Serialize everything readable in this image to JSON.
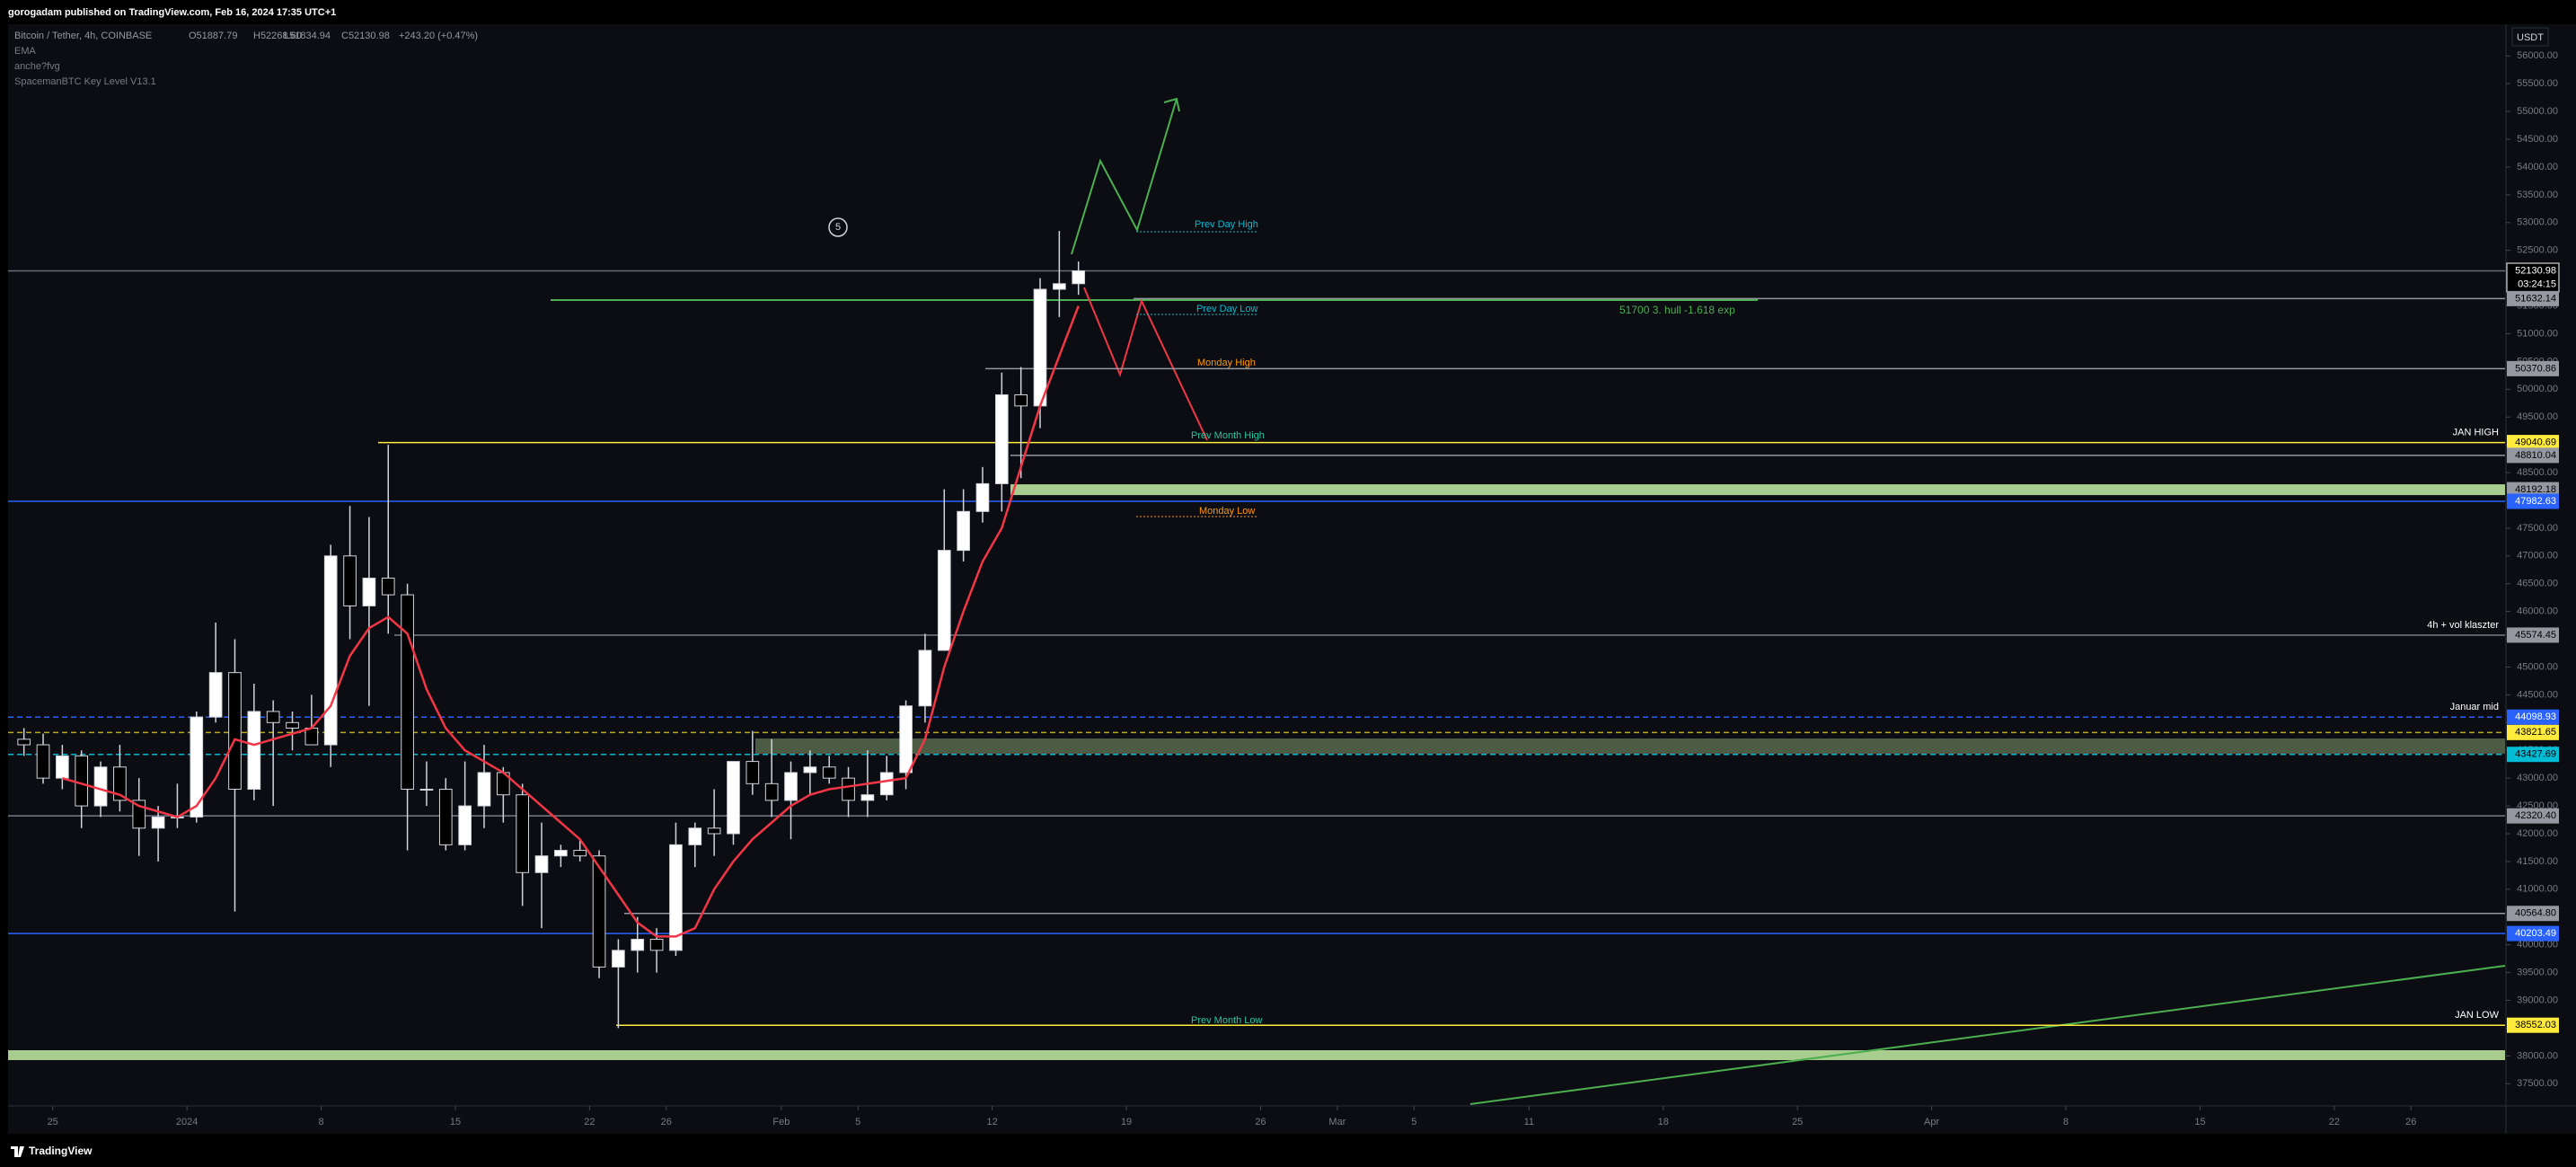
{
  "header": {
    "published": "gorogadam published on TradingView.com, Feb 16, 2024 17:35 UTC+1"
  },
  "legend": {
    "symbol": "Bitcoin / Tether, 4h, COINBASE",
    "open": "O51887.79",
    "high": "H52268.60",
    "low": "L51834.94",
    "close": "C52130.98",
    "change": "+243.20 (+0.47%)",
    "indicators": [
      "anche?fvg",
      "SpacemanBTC Key Level V13.1"
    ]
  },
  "currency": "USDT",
  "footer": "TradingView",
  "chart_data": {
    "type": "candlestick",
    "x": [
      "2023-12-23",
      "2023-12-24",
      "2023-12-25",
      "2023-12-26",
      "2023-12-27",
      "2023-12-28",
      "2023-12-29",
      "2023-12-30",
      "2023-12-31",
      "2024-01-01",
      "2024-01-02",
      "2024-01-03",
      "2024-01-04",
      "2024-01-05",
      "2024-01-06",
      "2024-01-07",
      "2024-01-08",
      "2024-01-09",
      "2024-01-10",
      "2024-01-11",
      "2024-01-12",
      "2024-01-13",
      "2024-01-14",
      "2024-01-15",
      "2024-01-16",
      "2024-01-17",
      "2024-01-18",
      "2024-01-19",
      "2024-01-20",
      "2024-01-21",
      "2024-01-22",
      "2024-01-23",
      "2024-01-24",
      "2024-01-25",
      "2024-01-26",
      "2024-01-27",
      "2024-01-28",
      "2024-01-29",
      "2024-01-30",
      "2024-01-31",
      "2024-02-01",
      "2024-02-02",
      "2024-02-03",
      "2024-02-04",
      "2024-02-05",
      "2024-02-06",
      "2024-02-07",
      "2024-02-08",
      "2024-02-09",
      "2024-02-10",
      "2024-02-11",
      "2024-02-12",
      "2024-02-13",
      "2024-02-14",
      "2024-02-15",
      "2024-02-16"
    ],
    "open": [
      43700,
      43600,
      43000,
      43400,
      42500,
      43200,
      42600,
      42100,
      42300,
      42300,
      44100,
      44900,
      42800,
      44200,
      44000,
      43900,
      43600,
      47000,
      46100,
      46600,
      46300,
      42800,
      42800,
      41800,
      42500,
      43100,
      42700,
      41300,
      41600,
      41700,
      41600,
      39600,
      39900,
      40100,
      39900,
      41800,
      42100,
      42000,
      43300,
      42900,
      42600,
      43100,
      43200,
      43000,
      42600,
      42700,
      43100,
      44300,
      45300,
      47100,
      47800,
      48300,
      49900,
      49700,
      51800,
      51900
    ],
    "high": [
      43900,
      43800,
      43600,
      43500,
      43300,
      43600,
      43000,
      42500,
      42900,
      44200,
      45800,
      45500,
      44700,
      44400,
      44200,
      44500,
      47200,
      47900,
      47700,
      49000,
      46500,
      43300,
      43000,
      43300,
      43600,
      43200,
      42900,
      42200,
      41800,
      41900,
      41700,
      40100,
      40500,
      40300,
      42200,
      42200,
      42800,
      43300,
      43850,
      43700,
      43300,
      43500,
      43400,
      43200,
      43500,
      43400,
      44400,
      45600,
      48200,
      48200,
      48600,
      50300,
      50400,
      52000,
      52850,
      52300
    ],
    "low": [
      43400,
      42900,
      42800,
      42100,
      42300,
      42400,
      41600,
      41500,
      42100,
      42200,
      44000,
      40600,
      42600,
      42500,
      43500,
      43600,
      43200,
      45500,
      44300,
      45600,
      41700,
      42500,
      41700,
      41700,
      42100,
      42200,
      40700,
      40300,
      41400,
      41500,
      39400,
      38500,
      39500,
      39500,
      39800,
      41400,
      41600,
      41800,
      42700,
      42300,
      41900,
      42700,
      42900,
      42300,
      42300,
      42600,
      42800,
      44000,
      45300,
      46900,
      47600,
      47800,
      48400,
      49300,
      51300,
      51700
    ],
    "close": [
      43600,
      43000,
      43400,
      42500,
      43200,
      42600,
      42100,
      42300,
      42300,
      44100,
      44900,
      42800,
      44200,
      44000,
      43900,
      43600,
      47000,
      46100,
      46600,
      46300,
      42800,
      42800,
      41800,
      42500,
      43100,
      42700,
      41300,
      41600,
      41700,
      41600,
      39600,
      39900,
      40100,
      39900,
      41800,
      42100,
      42000,
      43300,
      42900,
      42600,
      43100,
      43200,
      43000,
      42600,
      42700,
      43100,
      44300,
      45300,
      47100,
      47800,
      48300,
      49900,
      49700,
      51800,
      51900,
      52130.98
    ],
    "up_color": "#ffffff",
    "down_color": "#000000",
    "ema": {
      "name": "EMA",
      "color": "#f23645",
      "values": [
        null,
        null,
        43000,
        42900,
        42800,
        42700,
        42500,
        42400,
        42300,
        42500,
        43000,
        43700,
        43600,
        43700,
        43800,
        43900,
        44300,
        45200,
        45700,
        45900,
        45600,
        44600,
        43900,
        43500,
        43300,
        43100,
        42800,
        42500,
        42200,
        41900,
        41400,
        40900,
        40400,
        40150,
        40150,
        40300,
        41000,
        41500,
        41900,
        42200,
        42500,
        42700,
        42800,
        42850,
        42900,
        42950,
        43000,
        43700,
        45000,
        46000,
        46900,
        47500,
        48600,
        49700,
        50600,
        51500
      ]
    },
    "xlim": [
      "2023-12-23",
      "2024-05-01"
    ],
    "xticks": [
      {
        "value": "2023-12-25",
        "label": "25"
      },
      {
        "value": "2024-01-01",
        "label": "2024"
      },
      {
        "value": "2024-01-08",
        "label": "8"
      },
      {
        "value": "2024-01-15",
        "label": "15"
      },
      {
        "value": "2024-01-22",
        "label": "22"
      },
      {
        "value": "2024-01-26",
        "label": "26"
      },
      {
        "value": "2024-02-01",
        "label": "Feb"
      },
      {
        "value": "2024-02-05",
        "label": "5"
      },
      {
        "value": "2024-02-12",
        "label": "12"
      },
      {
        "value": "2024-02-19",
        "label": "19"
      },
      {
        "value": "2024-02-26",
        "label": "26"
      },
      {
        "value": "2024-03-01",
        "label": "Mar"
      },
      {
        "value": "2024-03-05",
        "label": "5"
      },
      {
        "value": "2024-03-11",
        "label": "11"
      },
      {
        "value": "2024-03-18",
        "label": "18"
      },
      {
        "value": "2024-03-25",
        "label": "25"
      },
      {
        "value": "2024-04-01",
        "label": "Apr"
      },
      {
        "value": "2024-04-08",
        "label": "8"
      },
      {
        "value": "2024-04-15",
        "label": "15"
      },
      {
        "value": "2024-04-22",
        "label": "22"
      },
      {
        "value": "2024-04-26",
        "label": "26"
      }
    ],
    "ylim": [
      37100,
      56570
    ],
    "yticks": [
      {
        "value": 37500,
        "label": "37500.00"
      },
      {
        "value": 38000,
        "label": "38000.00"
      },
      {
        "value": 38500,
        "label": "38500.00"
      },
      {
        "value": 39000,
        "label": "39000.00"
      },
      {
        "value": 39500,
        "label": "39500.00"
      },
      {
        "value": 40000,
        "label": "40000.00"
      },
      {
        "value": 40500,
        "label": "40500.00"
      },
      {
        "value": 41000,
        "label": "41000.00"
      },
      {
        "value": 41500,
        "label": "41500.00"
      },
      {
        "value": 42000,
        "label": "42000.00"
      },
      {
        "value": 42500,
        "label": "42500.00"
      },
      {
        "value": 43000,
        "label": "43000.00"
      },
      {
        "value": 43500,
        "label": "43500.00"
      },
      {
        "value": 44000,
        "label": "44000.00"
      },
      {
        "value": 44500,
        "label": "44500.00"
      },
      {
        "value": 45000,
        "label": "45000.00"
      },
      {
        "value": 45500,
        "label": "45500.00"
      },
      {
        "value": 46000,
        "label": "46000.00"
      },
      {
        "value": 46500,
        "label": "46500.00"
      },
      {
        "value": 47000,
        "label": "47000.00"
      },
      {
        "value": 47500,
        "label": "47500.00"
      },
      {
        "value": 48000,
        "label": "48000.00"
      },
      {
        "value": 48500,
        "label": "48500.00"
      },
      {
        "value": 49000,
        "label": "49000.00"
      },
      {
        "value": 49500,
        "label": "49500.00"
      },
      {
        "value": 50000,
        "label": "50000.00"
      },
      {
        "value": 50500,
        "label": "50500.00"
      },
      {
        "value": 51000,
        "label": "51000.00"
      },
      {
        "value": 51500,
        "label": "51500.00"
      },
      {
        "value": 52000,
        "label": "52000.00"
      },
      {
        "value": 52500,
        "label": "52500.00"
      },
      {
        "value": 53000,
        "label": "53000.00"
      },
      {
        "value": 53500,
        "label": "53500.00"
      },
      {
        "value": 54000,
        "label": "54000.00"
      },
      {
        "value": 54500,
        "label": "54500.00"
      },
      {
        "value": 55000,
        "label": "55000.00"
      },
      {
        "value": 55500,
        "label": "55500.00"
      },
      {
        "value": 56000,
        "label": "56000.00"
      }
    ],
    "grid": false,
    "levels": [
      {
        "price": 52130.98,
        "color": "#000000",
        "text_color": "#ffffff",
        "line_color": "#6a6d78",
        "countdown": "03:24:15"
      },
      {
        "price": 51632.14,
        "color": "#9598a1",
        "text_color": "#000000",
        "line_color": "#9598a1"
      },
      {
        "price": 50370.86,
        "color": "#9598a1",
        "text_color": "#000000",
        "line_color": "#9598a1"
      },
      {
        "price": 49040.69,
        "color": "#ffeb3b",
        "text_color": "#000000",
        "line_color": "#ffeb3b",
        "note": "JAN HIGH"
      },
      {
        "price": 48810.04,
        "color": "#9598a1",
        "text_color": "#000000",
        "line_color": "#9598a1"
      },
      {
        "price": 48192.18,
        "color": "#9598a1",
        "text_color": "#000000",
        "line_color": "#c5f0a4"
      },
      {
        "price": 47982.63,
        "color": "#2962ff",
        "text_color": "#ffffff",
        "line_color": "#2962ff"
      },
      {
        "price": 45574.45,
        "color": "#9598a1",
        "text_color": "#000000",
        "line_color": "#787b86",
        "note": "4h + vol klaszter"
      },
      {
        "price": 44098.93,
        "color": "#2962ff",
        "text_color": "#ffffff",
        "line_color": "#2962ff",
        "style": "dashed",
        "note": "Januar mid"
      },
      {
        "price": 43821.65,
        "color": "#ffeb3b",
        "text_color": "#000000",
        "line_color": "#b8a91a",
        "style": "dashed"
      },
      {
        "price": 43427.69,
        "color": "#00bcd4",
        "text_color": "#000000",
        "line_color": "#00bcd4",
        "style": "dashed"
      },
      {
        "price": 42320.4,
        "label": "42320.40",
        "color": "#9598a1",
        "text_color": "#000000",
        "line_color": "#787b86"
      },
      {
        "price": 40564.8,
        "label": "40564.80",
        "color": "#9598a1",
        "text_color": "#000000",
        "line_color": "#9598a1"
      },
      {
        "price": 40203.49,
        "color": "#2962ff",
        "text_color": "#ffffff",
        "line_color": "#2962ff"
      },
      {
        "price": 38552.03,
        "color": "#ffeb3b",
        "text_color": "#000000",
        "line_color": "#ffeb3b",
        "note": "JAN LOW"
      }
    ]
  },
  "annotations": [
    {
      "text": "Prev Day High",
      "color": "#00bcd4"
    },
    {
      "text": "Prev Day Low",
      "color": "#00bcd4"
    },
    {
      "text": "Monday High",
      "color": "#ff9800"
    },
    {
      "text": "Prev Month High",
      "color": "#26c6a0"
    },
    {
      "text": "Monday Low",
      "color": "#ff9800"
    },
    {
      "text": "Prev Month Low",
      "color": "#26c6a0"
    },
    {
      "text": "51700 3. hull -1.618 exp",
      "color": "#4caf50"
    },
    {
      "text": "5",
      "color": "#d1d4dc"
    }
  ]
}
